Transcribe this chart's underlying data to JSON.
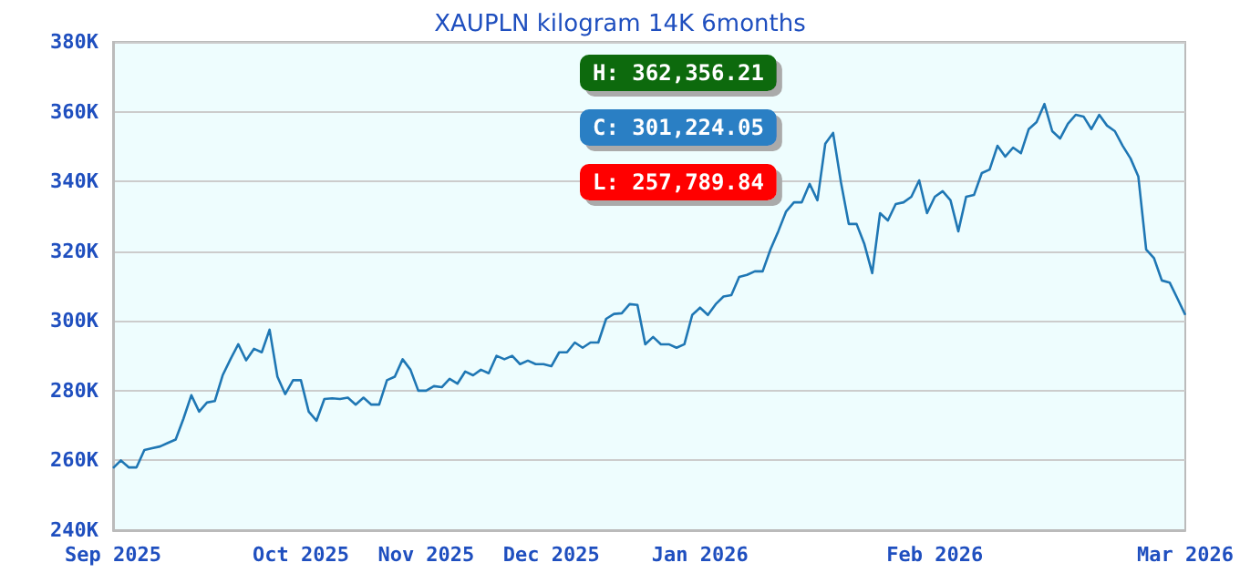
{
  "chart_data": {
    "type": "line",
    "title": "XAUPLN kilogram 14K 6months",
    "categories": [
      "Sep 2025",
      null,
      null,
      null,
      null,
      null,
      null,
      null,
      null,
      null,
      null,
      null,
      null,
      null,
      null,
      null,
      null,
      null,
      null,
      null,
      null,
      null,
      null,
      null,
      "Oct 2025",
      null,
      null,
      null,
      null,
      null,
      null,
      null,
      null,
      null,
      null,
      null,
      null,
      null,
      null,
      null,
      "Nov 2025",
      null,
      null,
      null,
      null,
      null,
      null,
      null,
      null,
      null,
      null,
      null,
      null,
      null,
      null,
      null,
      "Dec 2025",
      null,
      null,
      null,
      null,
      null,
      null,
      null,
      null,
      null,
      null,
      null,
      null,
      null,
      null,
      null,
      null,
      null,
      null,
      "Jan 2026",
      null,
      null,
      null,
      null,
      null,
      null,
      null,
      null,
      null,
      null,
      null,
      null,
      null,
      null,
      null,
      null,
      null,
      null,
      null,
      null,
      null,
      null,
      null,
      null,
      null,
      null,
      null,
      null,
      null,
      "Feb 2026",
      null,
      null,
      null,
      null,
      null,
      null,
      null,
      null,
      null,
      null,
      null,
      null,
      null,
      null,
      null,
      null,
      null,
      null,
      null,
      null,
      null,
      null,
      null,
      null,
      null,
      null,
      null,
      null,
      null,
      null,
      null,
      "Mar 2026"
    ],
    "series": [
      {
        "color": "#1f77b4",
        "values": [
          257800,
          260000,
          258000,
          258000,
          263000,
          263500,
          264000,
          265000,
          266000,
          272000,
          278700,
          274000,
          276600,
          277000,
          284400,
          289000,
          293300,
          288700,
          292000,
          291000,
          297500,
          284000,
          279000,
          283000,
          283000,
          274000,
          271400,
          277600,
          277800,
          277600,
          278000,
          276000,
          278000,
          276000,
          276000,
          283000,
          284000,
          289000,
          286000,
          280000,
          280000,
          281300,
          281000,
          283400,
          282000,
          285500,
          284400,
          286000,
          285000,
          290000,
          289000,
          290000,
          287600,
          288600,
          287600,
          287600,
          287000,
          291000,
          291000,
          293800,
          292300,
          293800,
          293800,
          300600,
          302000,
          302200,
          304800,
          304600,
          293300,
          295400,
          293300,
          293300,
          292300,
          293300,
          301700,
          303800,
          301700,
          304800,
          307000,
          307400,
          312600,
          313200,
          314200,
          314200,
          320500,
          325700,
          331400,
          334000,
          334000,
          339300,
          334600,
          350800,
          353900,
          339800,
          327800,
          327800,
          322000,
          313700,
          330900,
          328800,
          333500,
          334000,
          335600,
          340300,
          330900,
          335600,
          337200,
          334600,
          325700,
          335600,
          336100,
          342400,
          343400,
          350200,
          347100,
          349700,
          348100,
          355000,
          357000,
          362200,
          354400,
          352300,
          356500,
          359100,
          358600,
          355000,
          359100,
          356000,
          354400,
          350200,
          346600,
          341400,
          320500,
          318000,
          311600,
          311000,
          306400,
          301700
        ]
      }
    ],
    "ylim": [
      240000,
      380000
    ],
    "yticks": [
      {
        "value": 240000,
        "label": "240K"
      },
      {
        "value": 260000,
        "label": "260K"
      },
      {
        "value": 280000,
        "label": "280K"
      },
      {
        "value": 300000,
        "label": "300K"
      },
      {
        "value": 320000,
        "label": "320K"
      },
      {
        "value": 340000,
        "label": "340K"
      },
      {
        "value": 360000,
        "label": "360K"
      },
      {
        "value": 380000,
        "label": "380K"
      }
    ],
    "grid": "y",
    "marker": "none",
    "line_style": "solid",
    "annotations": [
      "H: 362,356.21",
      "C: 301,224.05",
      "L: 257,789.84"
    ]
  }
}
